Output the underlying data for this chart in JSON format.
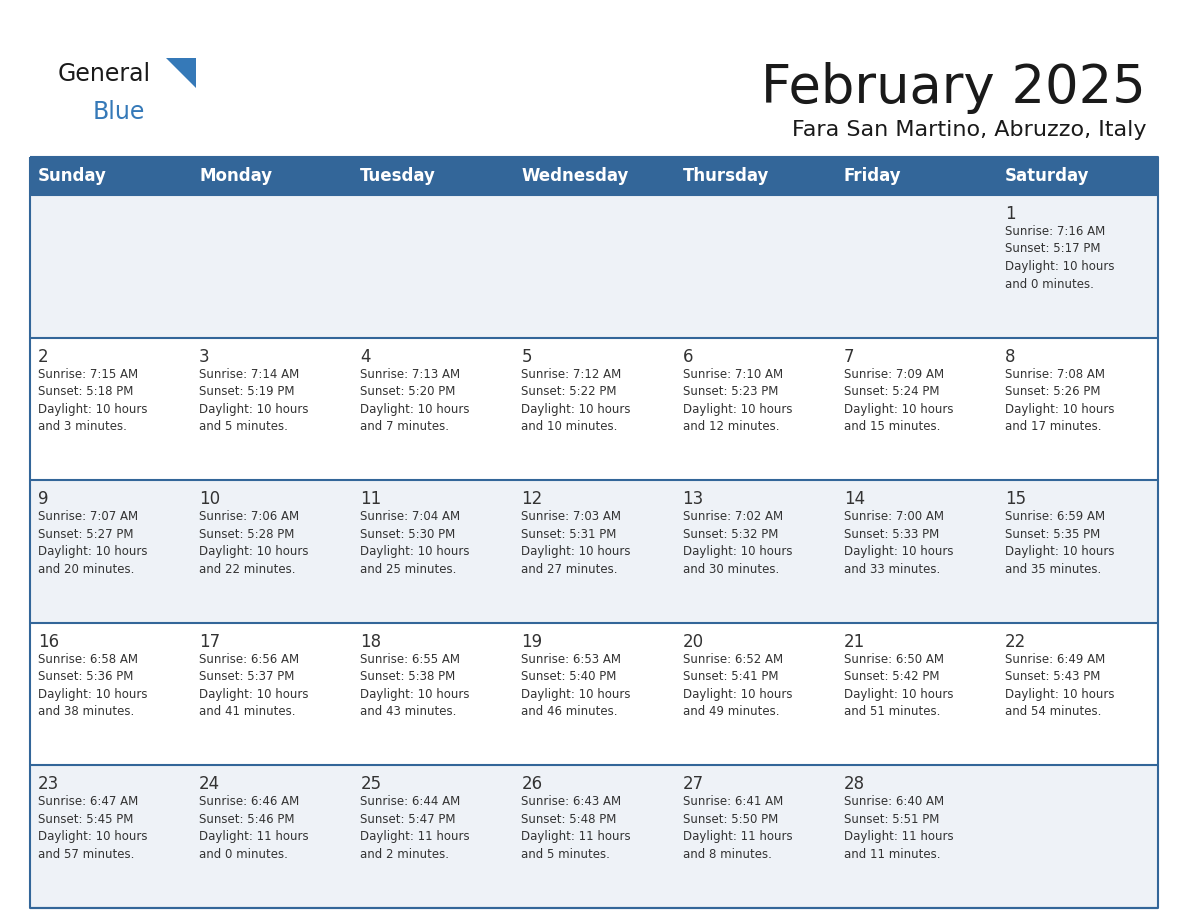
{
  "title": "February 2025",
  "subtitle": "Fara San Martino, Abruzzo, Italy",
  "header_bg": "#336699",
  "header_text": "#ffffff",
  "row_bg_light": "#eef2f7",
  "row_bg_white": "#ffffff",
  "cell_text": "#333333",
  "border_color": "#336699",
  "days_of_week": [
    "Sunday",
    "Monday",
    "Tuesday",
    "Wednesday",
    "Thursday",
    "Friday",
    "Saturday"
  ],
  "weeks": [
    [
      {
        "day": null,
        "info": null
      },
      {
        "day": null,
        "info": null
      },
      {
        "day": null,
        "info": null
      },
      {
        "day": null,
        "info": null
      },
      {
        "day": null,
        "info": null
      },
      {
        "day": null,
        "info": null
      },
      {
        "day": 1,
        "info": "Sunrise: 7:16 AM\nSunset: 5:17 PM\nDaylight: 10 hours\nand 0 minutes."
      }
    ],
    [
      {
        "day": 2,
        "info": "Sunrise: 7:15 AM\nSunset: 5:18 PM\nDaylight: 10 hours\nand 3 minutes."
      },
      {
        "day": 3,
        "info": "Sunrise: 7:14 AM\nSunset: 5:19 PM\nDaylight: 10 hours\nand 5 minutes."
      },
      {
        "day": 4,
        "info": "Sunrise: 7:13 AM\nSunset: 5:20 PM\nDaylight: 10 hours\nand 7 minutes."
      },
      {
        "day": 5,
        "info": "Sunrise: 7:12 AM\nSunset: 5:22 PM\nDaylight: 10 hours\nand 10 minutes."
      },
      {
        "day": 6,
        "info": "Sunrise: 7:10 AM\nSunset: 5:23 PM\nDaylight: 10 hours\nand 12 minutes."
      },
      {
        "day": 7,
        "info": "Sunrise: 7:09 AM\nSunset: 5:24 PM\nDaylight: 10 hours\nand 15 minutes."
      },
      {
        "day": 8,
        "info": "Sunrise: 7:08 AM\nSunset: 5:26 PM\nDaylight: 10 hours\nand 17 minutes."
      }
    ],
    [
      {
        "day": 9,
        "info": "Sunrise: 7:07 AM\nSunset: 5:27 PM\nDaylight: 10 hours\nand 20 minutes."
      },
      {
        "day": 10,
        "info": "Sunrise: 7:06 AM\nSunset: 5:28 PM\nDaylight: 10 hours\nand 22 minutes."
      },
      {
        "day": 11,
        "info": "Sunrise: 7:04 AM\nSunset: 5:30 PM\nDaylight: 10 hours\nand 25 minutes."
      },
      {
        "day": 12,
        "info": "Sunrise: 7:03 AM\nSunset: 5:31 PM\nDaylight: 10 hours\nand 27 minutes."
      },
      {
        "day": 13,
        "info": "Sunrise: 7:02 AM\nSunset: 5:32 PM\nDaylight: 10 hours\nand 30 minutes."
      },
      {
        "day": 14,
        "info": "Sunrise: 7:00 AM\nSunset: 5:33 PM\nDaylight: 10 hours\nand 33 minutes."
      },
      {
        "day": 15,
        "info": "Sunrise: 6:59 AM\nSunset: 5:35 PM\nDaylight: 10 hours\nand 35 minutes."
      }
    ],
    [
      {
        "day": 16,
        "info": "Sunrise: 6:58 AM\nSunset: 5:36 PM\nDaylight: 10 hours\nand 38 minutes."
      },
      {
        "day": 17,
        "info": "Sunrise: 6:56 AM\nSunset: 5:37 PM\nDaylight: 10 hours\nand 41 minutes."
      },
      {
        "day": 18,
        "info": "Sunrise: 6:55 AM\nSunset: 5:38 PM\nDaylight: 10 hours\nand 43 minutes."
      },
      {
        "day": 19,
        "info": "Sunrise: 6:53 AM\nSunset: 5:40 PM\nDaylight: 10 hours\nand 46 minutes."
      },
      {
        "day": 20,
        "info": "Sunrise: 6:52 AM\nSunset: 5:41 PM\nDaylight: 10 hours\nand 49 minutes."
      },
      {
        "day": 21,
        "info": "Sunrise: 6:50 AM\nSunset: 5:42 PM\nDaylight: 10 hours\nand 51 minutes."
      },
      {
        "day": 22,
        "info": "Sunrise: 6:49 AM\nSunset: 5:43 PM\nDaylight: 10 hours\nand 54 minutes."
      }
    ],
    [
      {
        "day": 23,
        "info": "Sunrise: 6:47 AM\nSunset: 5:45 PM\nDaylight: 10 hours\nand 57 minutes."
      },
      {
        "day": 24,
        "info": "Sunrise: 6:46 AM\nSunset: 5:46 PM\nDaylight: 11 hours\nand 0 minutes."
      },
      {
        "day": 25,
        "info": "Sunrise: 6:44 AM\nSunset: 5:47 PM\nDaylight: 11 hours\nand 2 minutes."
      },
      {
        "day": 26,
        "info": "Sunrise: 6:43 AM\nSunset: 5:48 PM\nDaylight: 11 hours\nand 5 minutes."
      },
      {
        "day": 27,
        "info": "Sunrise: 6:41 AM\nSunset: 5:50 PM\nDaylight: 11 hours\nand 8 minutes."
      },
      {
        "day": 28,
        "info": "Sunrise: 6:40 AM\nSunset: 5:51 PM\nDaylight: 11 hours\nand 11 minutes."
      },
      {
        "day": null,
        "info": null
      }
    ]
  ],
  "logo_general_color": "#1a1a1a",
  "logo_blue_color": "#3579b8",
  "logo_triangle_color": "#3579b8",
  "fig_width": 11.88,
  "fig_height": 9.18,
  "dpi": 100
}
